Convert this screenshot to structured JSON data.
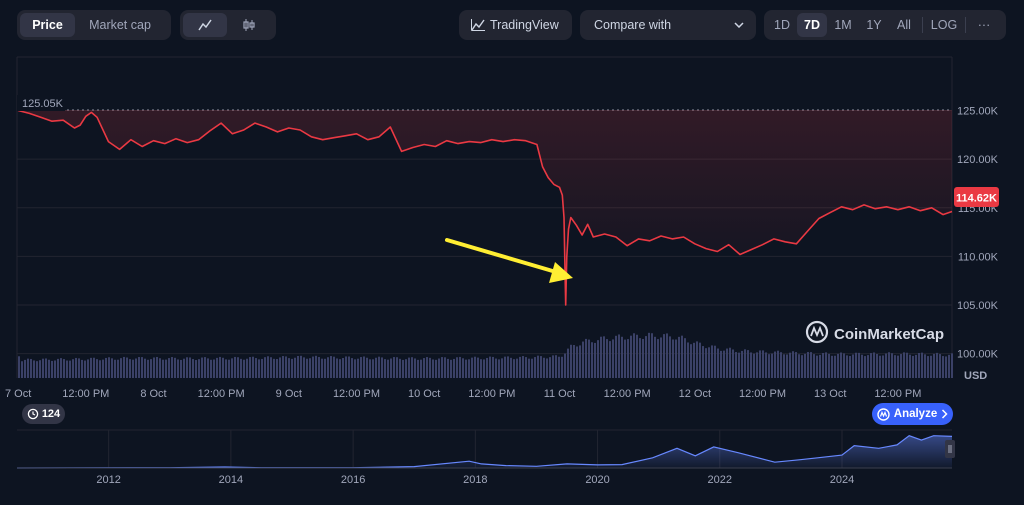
{
  "toolbar": {
    "price_tab": "Price",
    "marketcap_tab": "Market cap",
    "line_icon": "line-chart-icon",
    "candle_icon": "candlestick-icon",
    "tradingview": "TradingView",
    "compare": "Compare with",
    "ranges": [
      "1D",
      "7D",
      "1M",
      "1Y",
      "All"
    ],
    "active_range": "7D",
    "log": "LOG",
    "more": "···"
  },
  "chart_data": {
    "type": "line",
    "title": "",
    "currency": "USD",
    "ylim": [
      97500,
      130500
    ],
    "y_ticks": [
      "125.00K",
      "120.00K",
      "115.00K",
      "110.00K",
      "105.00K",
      "100.00K"
    ],
    "y_tick_values": [
      125000,
      120000,
      115000,
      110000,
      105000,
      100000
    ],
    "x_ticks": [
      "7 Oct",
      "12:00 PM",
      "8 Oct",
      "12:00 PM",
      "9 Oct",
      "12:00 PM",
      "10 Oct",
      "12:00 PM",
      "11 Oct",
      "12:00 PM",
      "12 Oct",
      "12:00 PM",
      "13 Oct",
      "12:00 PM"
    ],
    "x_tick_hours": [
      0,
      12,
      24,
      36,
      48,
      60,
      72,
      84,
      96,
      108,
      120,
      132,
      144,
      156
    ],
    "xlim_hours": [
      -0.2,
      165.6
    ],
    "reference_label": "125.05K",
    "reference_value": 125050,
    "current_label": "114.62K",
    "current_value": 114620,
    "series": [
      {
        "hours": [
          0,
          2,
          4,
          6,
          8,
          10,
          11,
          12,
          13,
          14,
          16,
          18,
          20,
          22,
          24,
          26,
          28,
          30,
          32,
          34,
          36,
          38,
          40,
          42,
          44,
          46,
          48,
          50,
          52,
          54,
          56,
          58,
          60,
          62,
          64,
          66,
          68,
          70,
          72,
          74,
          76,
          78,
          80,
          82,
          84,
          86,
          88,
          90,
          92,
          93,
          94,
          95,
          96,
          96.5,
          96.8,
          97.0,
          97.1,
          97.3,
          97.6,
          98,
          99,
          100,
          101,
          102,
          104,
          106,
          108,
          110,
          112,
          114,
          116,
          118,
          120,
          122,
          124,
          126,
          128,
          130,
          132,
          134,
          136,
          138,
          140,
          142,
          144,
          146,
          148,
          150,
          152,
          154,
          156,
          158,
          160,
          162,
          164,
          165.6
        ],
        "values": [
          125000,
          124700,
          124300,
          123900,
          124000,
          123200,
          123500,
          124400,
          124800,
          124300,
          121800,
          121000,
          122000,
          121300,
          121900,
          121600,
          122100,
          121700,
          122000,
          122900,
          123700,
          122600,
          123000,
          123700,
          123300,
          122800,
          123200,
          123000,
          122300,
          122000,
          122200,
          122400,
          122600,
          122000,
          122300,
          123300,
          120800,
          121200,
          121500,
          121300,
          121900,
          121600,
          121800,
          121700,
          122000,
          121800,
          122000,
          121900,
          121500,
          119200,
          118100,
          117400,
          117100,
          116300,
          114000,
          108000,
          105000,
          110000,
          112800,
          114000,
          113200,
          112200,
          113300,
          112000,
          112300,
          112000,
          111100,
          111800,
          111600,
          112100,
          111800,
          112000,
          111300,
          110800,
          110500,
          111200,
          110200,
          110700,
          111200,
          111800,
          111500,
          111300,
          112600,
          113900,
          114500,
          115100,
          114800,
          115300,
          114900,
          115100,
          114800,
          115100,
          114700,
          115000,
          114300,
          114620
        ]
      }
    ],
    "volume": {
      "hours": [
        0,
        10,
        20,
        30,
        40,
        50,
        60,
        70,
        80,
        90,
        96,
        98,
        100,
        104,
        108,
        112,
        116,
        118,
        120,
        124,
        128,
        132,
        136,
        140,
        144,
        150,
        156,
        160,
        165.6
      ],
      "values": [
        0.5,
        0.52,
        0.55,
        0.54,
        0.55,
        0.58,
        0.56,
        0.54,
        0.55,
        0.57,
        0.6,
        0.88,
        1.0,
        1.1,
        1.15,
        1.18,
        1.15,
        1.08,
        0.96,
        0.82,
        0.75,
        0.72,
        0.7,
        0.68,
        0.66,
        0.66,
        0.67,
        0.66,
        0.64
      ]
    }
  },
  "overview": {
    "years": [
      "2012",
      "2014",
      "2016",
      "2018",
      "2020",
      "2022",
      "2024"
    ],
    "year_values": [
      2012,
      2014,
      2016,
      2018,
      2020,
      2022,
      2024
    ],
    "xlim": [
      2010.5,
      2025.8
    ],
    "points_x": [
      2010.5,
      2013.0,
      2013.9,
      2014.5,
      2016.0,
      2017.0,
      2017.9,
      2018.1,
      2018.5,
      2019.0,
      2019.5,
      2020.0,
      2020.4,
      2020.9,
      2021.3,
      2021.6,
      2021.9,
      2022.3,
      2022.9,
      2023.3,
      2023.6,
      2024.0,
      2024.2,
      2024.6,
      2024.9,
      2025.1,
      2025.3,
      2025.5,
      2025.8
    ],
    "points_y": [
      0.0,
      0.01,
      0.03,
      0.01,
      0.01,
      0.04,
      0.2,
      0.12,
      0.07,
      0.05,
      0.12,
      0.09,
      0.1,
      0.3,
      0.58,
      0.36,
      0.62,
      0.45,
      0.17,
      0.24,
      0.3,
      0.38,
      0.66,
      0.58,
      0.68,
      0.95,
      0.82,
      0.95,
      0.93
    ]
  },
  "watermark": "CoinMarketCap",
  "history_count": "124",
  "analyze_label": "Analyze",
  "colors": {
    "background": "#0d1421",
    "line": "#ea3943",
    "grid": "#222531",
    "volume": "#3b4167",
    "overview_line": "#6788ff",
    "arrow": "#ffee33",
    "analyze": "#3861fb"
  }
}
